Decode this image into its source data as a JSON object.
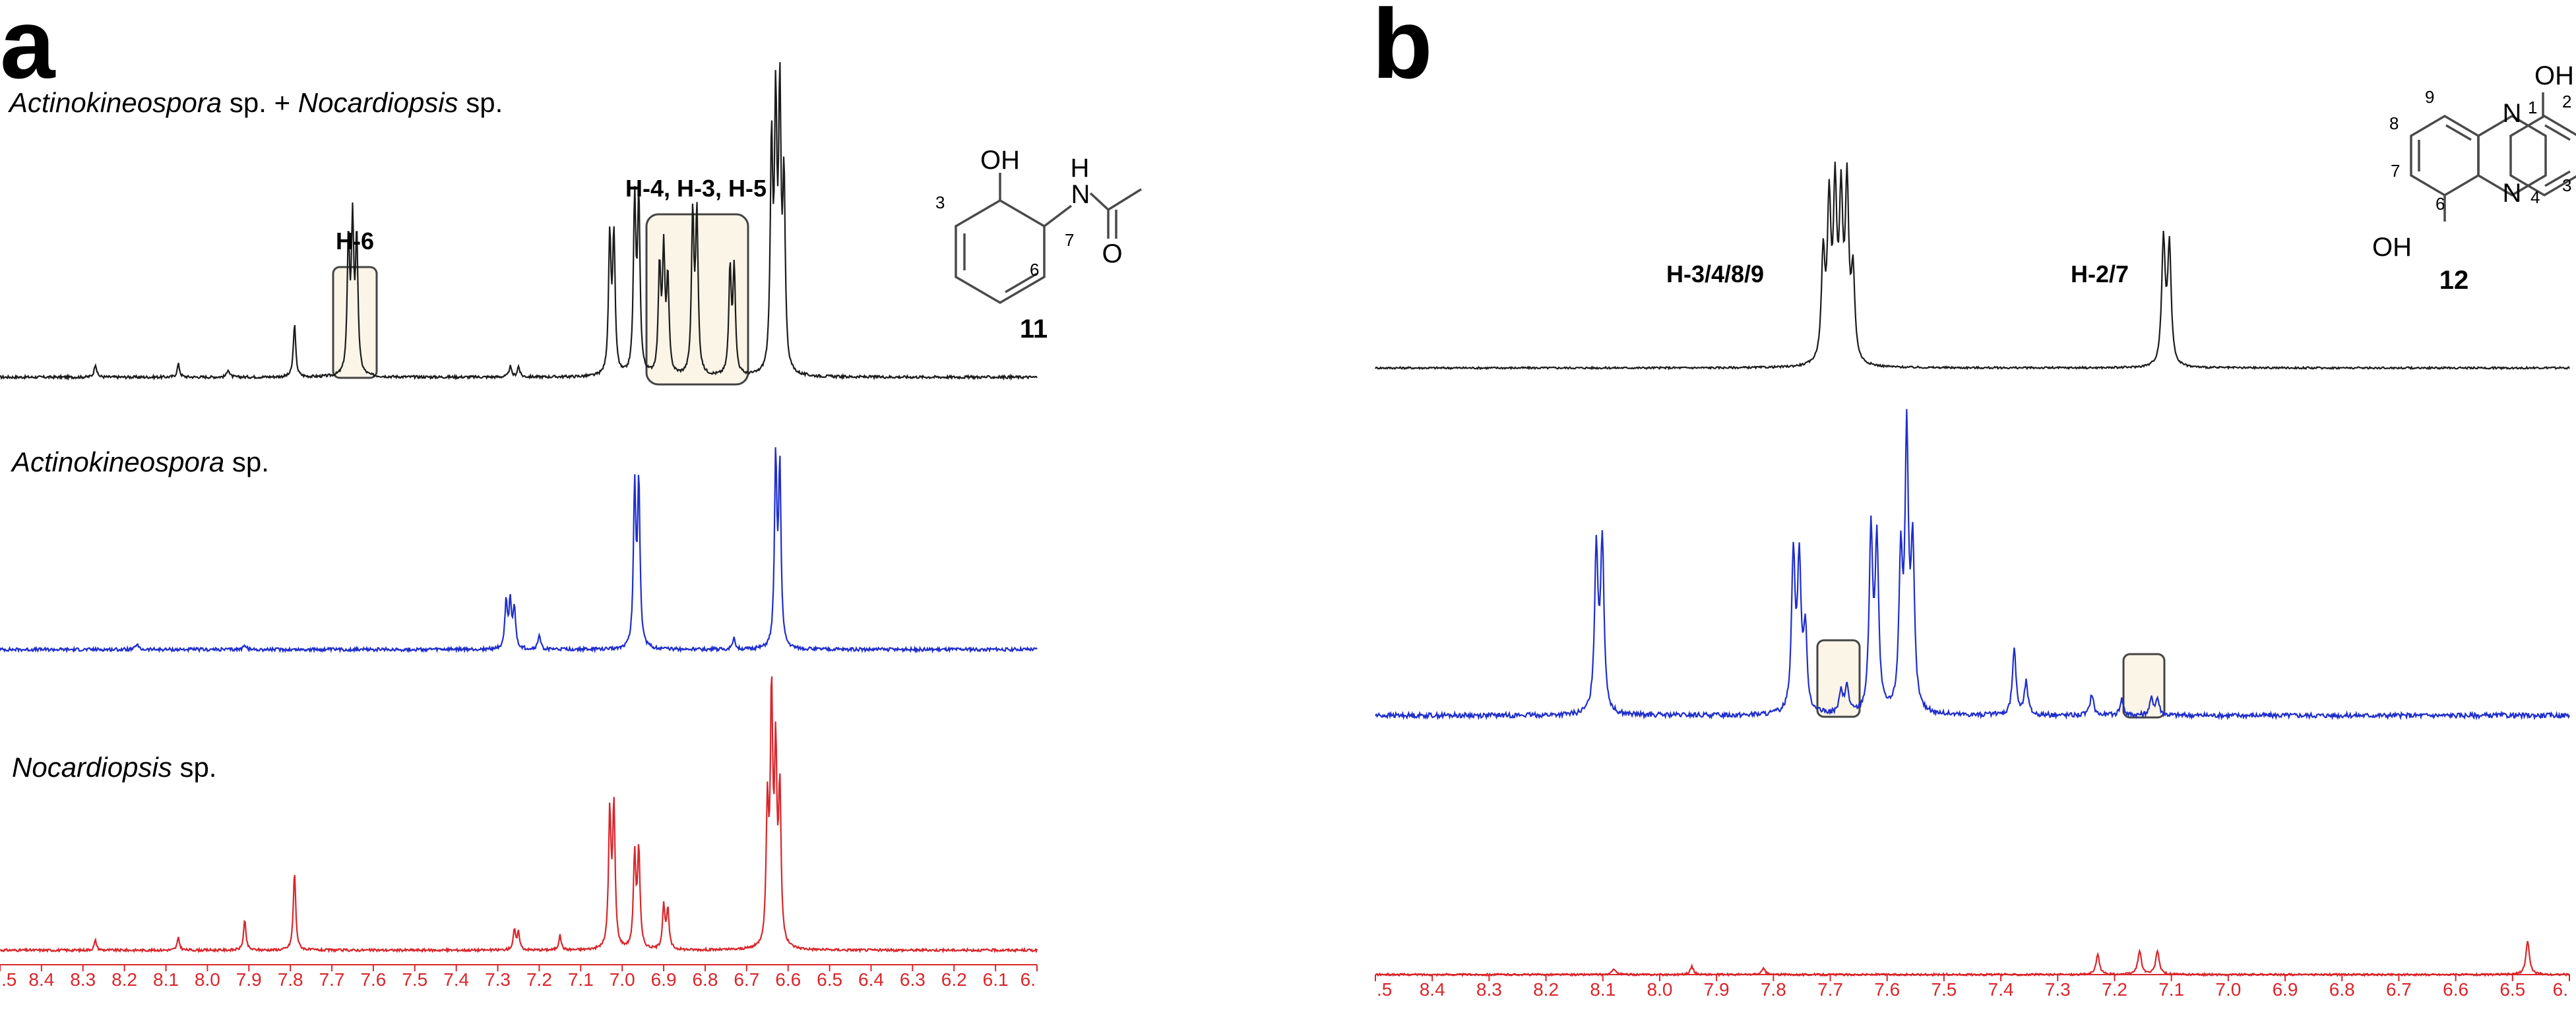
{
  "panels": [
    {
      "letter": "a",
      "compound": {
        "number": "11",
        "atoms": {
          "oh": "OH",
          "nh_n": "N",
          "nh_h": "H",
          "o": "O"
        },
        "positions": [
          "3",
          "7",
          "6"
        ]
      },
      "peak_labels": [
        "H-6",
        "H-4, H-3, H-5"
      ],
      "traces": [
        {
          "label_parts": [
            {
              "text": "Actinokineospora",
              "italic": true
            },
            {
              "text": " sp. + ",
              "italic": false
            },
            {
              "text": "Nocardiopsis",
              "italic": true
            },
            {
              "text": " sp.",
              "italic": false
            }
          ],
          "color": "#1c1c1c"
        },
        {
          "label_parts": [
            {
              "text": "Actinokineospora",
              "italic": true
            },
            {
              "text": " sp.",
              "italic": false
            }
          ],
          "color": "#1f2ecc"
        },
        {
          "label_parts": [
            {
              "text": "Nocardiopsis",
              "italic": true
            },
            {
              "text": " sp.",
              "italic": false
            }
          ],
          "color": "#d9262b"
        }
      ],
      "axis_tick_labels": [
        ".5",
        "8.4",
        "8.3",
        "8.2",
        "8.1",
        "8.0",
        "7.9",
        "7.8",
        "7.7",
        "7.6",
        "7.5",
        "7.4",
        "7.3",
        "7.2",
        "7.1",
        "7.0",
        "6.9",
        "6.8",
        "6.7",
        "6.6",
        "6.5",
        "6.4",
        "6.3",
        "6.2",
        "6.1",
        "6."
      ]
    },
    {
      "letter": "b",
      "compound": {
        "number": "12",
        "atoms": {
          "oh_top": "OH",
          "oh_bottom": "OH",
          "n_top": "N",
          "n_bottom": "N"
        },
        "positions": [
          "1",
          "2",
          "3",
          "4",
          "6",
          "7",
          "8",
          "9"
        ]
      },
      "peak_labels": [
        "H-3/4/8/9",
        "H-2/7"
      ],
      "traces": [
        {
          "label_parts": [],
          "color": "#1c1c1c"
        },
        {
          "label_parts": [],
          "color": "#1f2ecc"
        },
        {
          "label_parts": [],
          "color": "#d9262b"
        }
      ],
      "axis_tick_labels": [
        ".5",
        "8.4",
        "8.3",
        "8.2",
        "8.1",
        "8.0",
        "7.9",
        "7.8",
        "7.7",
        "7.6",
        "7.5",
        "7.4",
        "7.3",
        "7.2",
        "7.1",
        "7.0",
        "6.9",
        "6.8",
        "6.7",
        "6.6",
        "6.5",
        "6."
      ]
    }
  ],
  "chart_data": [
    {
      "type": "line",
      "panel": "a",
      "xlabel": "",
      "ylabel": "",
      "xlim": [
        8.5,
        6.0
      ],
      "x_reversed": true,
      "grid": false,
      "series": [
        {
          "name": "Actinokineospora sp. + Nocardiopsis sp.",
          "baseline": 0.04,
          "peaks": [
            [
              8.27,
              0.05
            ],
            [
              8.07,
              0.05
            ],
            [
              7.95,
              0.03
            ],
            [
              7.79,
              0.2
            ],
            [
              7.66,
              0.5
            ],
            [
              7.65,
              0.55
            ],
            [
              7.64,
              0.5
            ],
            [
              7.27,
              0.04
            ],
            [
              7.25,
              0.04
            ],
            [
              7.03,
              0.52
            ],
            [
              7.02,
              0.52
            ],
            [
              6.97,
              0.65
            ],
            [
              6.96,
              0.65
            ],
            [
              6.91,
              0.4
            ],
            [
              6.9,
              0.45
            ],
            [
              6.89,
              0.35
            ],
            [
              6.83,
              0.6
            ],
            [
              6.82,
              0.6
            ],
            [
              6.74,
              0.4
            ],
            [
              6.73,
              0.4
            ],
            [
              6.64,
              0.85
            ],
            [
              6.63,
              0.95
            ],
            [
              6.62,
              1.0
            ],
            [
              6.61,
              0.7
            ]
          ]
        },
        {
          "name": "Actinokineospora sp.",
          "baseline": 0.02,
          "peaks": [
            [
              8.17,
              0.03
            ],
            [
              7.91,
              0.03
            ],
            [
              7.28,
              0.25
            ],
            [
              7.27,
              0.25
            ],
            [
              7.26,
              0.22
            ],
            [
              7.2,
              0.08
            ],
            [
              6.97,
              0.85
            ],
            [
              6.96,
              0.88
            ],
            [
              6.73,
              0.06
            ],
            [
              6.63,
              1.0
            ],
            [
              6.62,
              0.95
            ]
          ]
        },
        {
          "name": "Nocardiopsis sp.",
          "baseline": 0.02,
          "peaks": [
            [
              8.27,
              0.04
            ],
            [
              8.07,
              0.05
            ],
            [
              7.91,
              0.12
            ],
            [
              7.79,
              0.32
            ],
            [
              7.26,
              0.08
            ],
            [
              7.25,
              0.07
            ],
            [
              7.15,
              0.06
            ],
            [
              7.03,
              0.55
            ],
            [
              7.02,
              0.57
            ],
            [
              6.97,
              0.38
            ],
            [
              6.96,
              0.4
            ],
            [
              6.9,
              0.18
            ],
            [
              6.89,
              0.16
            ],
            [
              6.65,
              0.55
            ],
            [
              6.64,
              1.0
            ],
            [
              6.63,
              0.75
            ],
            [
              6.62,
              0.62
            ]
          ]
        }
      ]
    },
    {
      "type": "line",
      "panel": "b",
      "xlabel": "",
      "ylabel": "",
      "xlim": [
        8.5,
        6.5
      ],
      "x_reversed": true,
      "grid": false,
      "series": [
        {
          "name": "",
          "baseline": 0.02,
          "peaks": [
            [
              7.75,
              0.55
            ],
            [
              7.74,
              0.8
            ],
            [
              7.73,
              0.85
            ],
            [
              7.72,
              0.8
            ],
            [
              7.71,
              0.9
            ],
            [
              7.7,
              0.45
            ],
            [
              7.18,
              0.65
            ],
            [
              7.17,
              0.62
            ]
          ]
        },
        {
          "name": "",
          "baseline": 0.02,
          "peaks": [
            [
              8.13,
              0.6
            ],
            [
              8.12,
              0.62
            ],
            [
              7.8,
              0.58
            ],
            [
              7.79,
              0.55
            ],
            [
              7.78,
              0.3
            ],
            [
              7.72,
              0.08
            ],
            [
              7.71,
              0.1
            ],
            [
              7.67,
              0.66
            ],
            [
              7.66,
              0.62
            ],
            [
              7.62,
              0.55
            ],
            [
              7.61,
              1.0
            ],
            [
              7.6,
              0.58
            ],
            [
              7.43,
              0.25
            ],
            [
              7.41,
              0.12
            ],
            [
              7.3,
              0.08
            ],
            [
              7.25,
              0.06
            ],
            [
              7.2,
              0.06
            ],
            [
              7.19,
              0.06
            ]
          ]
        },
        {
          "name": "",
          "baseline": 0.02,
          "peaks": [
            [
              8.1,
              0.03
            ],
            [
              7.97,
              0.04
            ],
            [
              7.85,
              0.03
            ],
            [
              7.29,
              0.1
            ],
            [
              7.22,
              0.12
            ],
            [
              7.19,
              0.12
            ],
            [
              6.57,
              0.17
            ]
          ]
        }
      ]
    }
  ]
}
